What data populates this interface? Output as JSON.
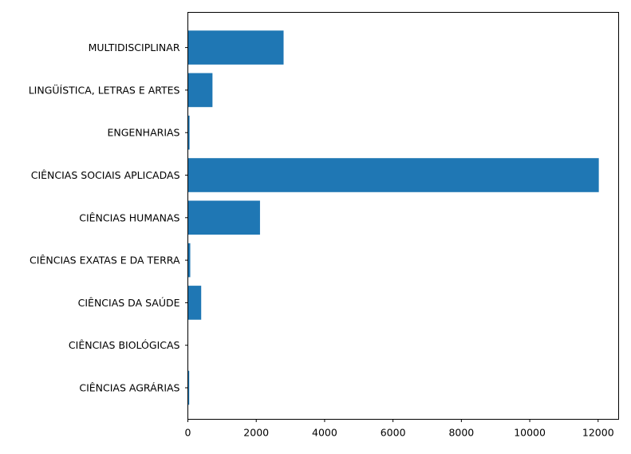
{
  "chart_data": {
    "type": "bar",
    "orientation": "horizontal",
    "categories": [
      "CIÊNCIAS AGRÁRIAS",
      "CIÊNCIAS BIOLÓGICAS",
      "CIÊNCIAS DA SAÚDE",
      "CIÊNCIAS EXATAS E DA TERRA",
      "CIÊNCIAS HUMANAS",
      "CIÊNCIAS SOCIAIS APLICADAS",
      "ENGENHARIAS",
      "LINGÜÍSTICA, LETRAS E ARTES",
      "MULTIDISCIPLINAR"
    ],
    "values": [
      40,
      5,
      390,
      70,
      2110,
      12020,
      50,
      720,
      2800
    ],
    "title": "",
    "xlabel": "",
    "ylabel": "",
    "xlim": [
      0,
      12600
    ],
    "xticks": [
      0,
      2000,
      4000,
      6000,
      8000,
      10000,
      12000
    ],
    "xtick_labels": [
      "0",
      "2000",
      "4000",
      "6000",
      "8000",
      "10000",
      "12000"
    ],
    "bar_color": "#1f77b4",
    "grid": false,
    "legend": "none"
  }
}
